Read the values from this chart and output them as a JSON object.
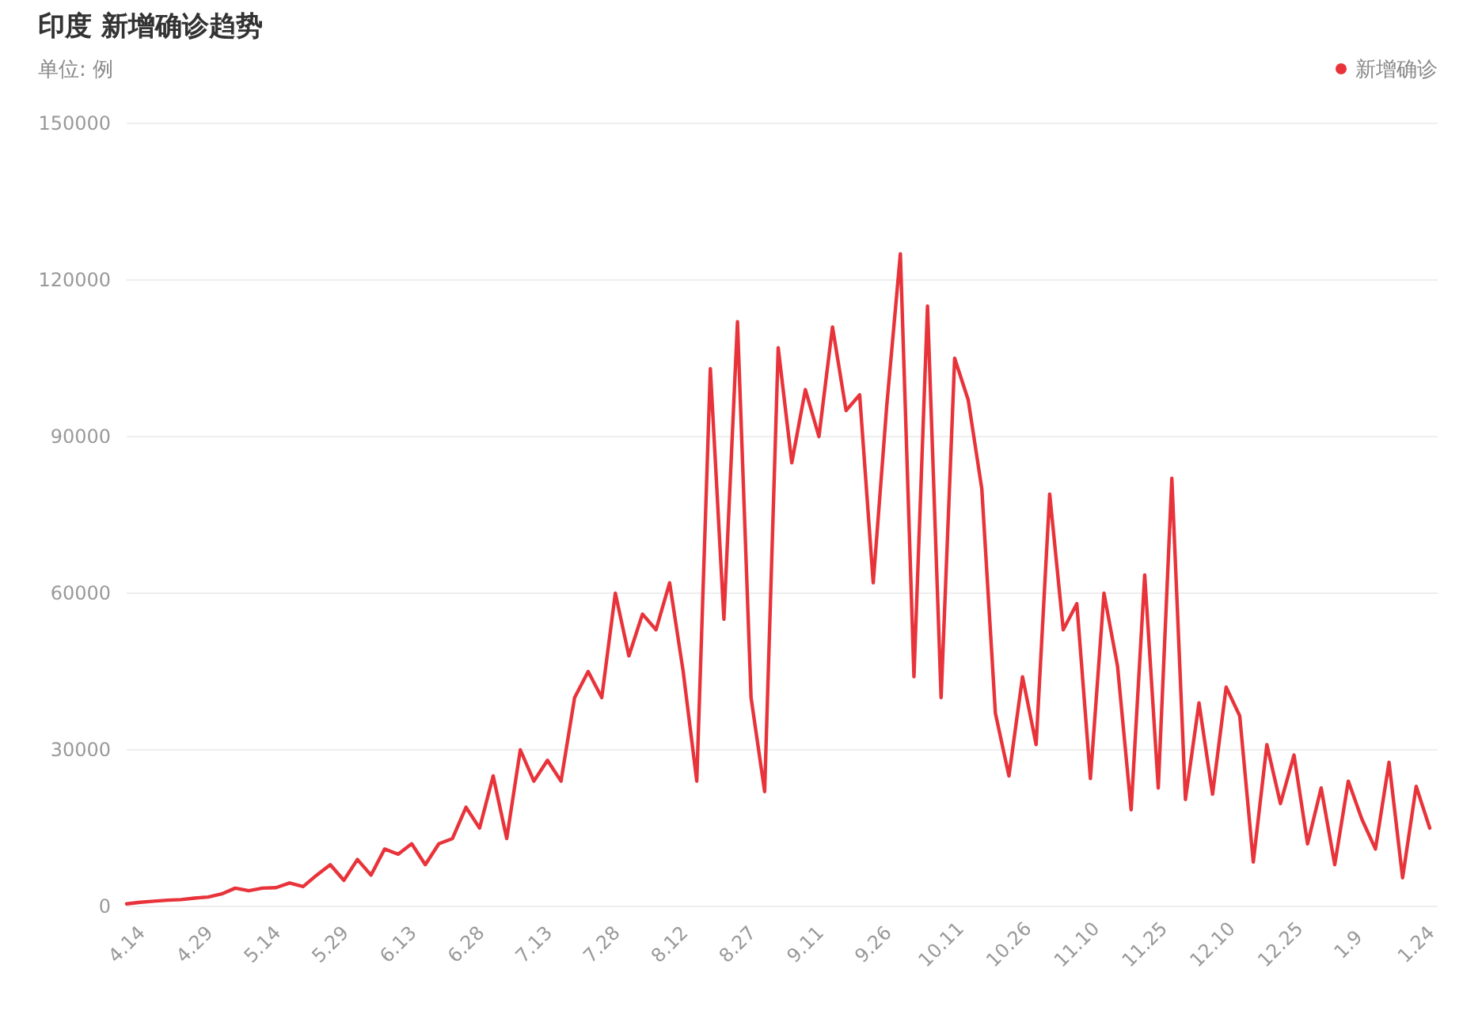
{
  "chart_data": {
    "type": "line",
    "title": "印度 新增确诊趋势",
    "subtitle": "单位: 例",
    "categories": [
      "4.14",
      null,
      null,
      null,
      null,
      "4.29",
      null,
      null,
      null,
      null,
      "5.14",
      null,
      null,
      null,
      null,
      "5.29",
      null,
      null,
      null,
      null,
      "6.13",
      null,
      null,
      null,
      null,
      "6.28",
      null,
      null,
      null,
      null,
      "7.13",
      null,
      null,
      null,
      null,
      "7.28",
      null,
      null,
      null,
      null,
      "8.12",
      null,
      null,
      null,
      null,
      "8.27",
      null,
      null,
      null,
      null,
      "9.11",
      null,
      null,
      null,
      null,
      "9.26",
      null,
      null,
      null,
      null,
      "10.11",
      null,
      null,
      null,
      null,
      "10.26",
      null,
      null,
      null,
      null,
      "11.10",
      null,
      null,
      null,
      null,
      "11.25",
      null,
      null,
      null,
      null,
      "12.10",
      null,
      null,
      null,
      null,
      "12.25",
      null,
      null,
      null,
      null,
      "1.9",
      null,
      null,
      null,
      null,
      "1.24",
      null
    ],
    "series": [
      {
        "name": "新增确诊",
        "color": "#e8333a",
        "values": [
          500,
          800,
          1000,
          1200,
          1300,
          1600,
          1800,
          2400,
          3500,
          3000,
          3500,
          3600,
          4500,
          3800,
          6000,
          8000,
          5000,
          9000,
          6000,
          11000,
          10000,
          12000,
          8000,
          12000,
          13000,
          19000,
          15000,
          25000,
          13000,
          30000,
          24000,
          28000,
          24000,
          40000,
          45000,
          40000,
          60000,
          48000,
          56000,
          53000,
          62000,
          45000,
          24000,
          103000,
          55000,
          112000,
          40000,
          22000,
          107000,
          85000,
          99000,
          90000,
          111000,
          95000,
          98000,
          62000,
          96000,
          125000,
          44000,
          115000,
          40000,
          105000,
          97000,
          80000,
          37000,
          25000,
          44000,
          31000,
          79000,
          53000,
          58000,
          24500,
          60000,
          46000,
          18500,
          63500,
          22700,
          82000,
          20500,
          39000,
          21500,
          42000,
          36500,
          8500,
          31000,
          19700,
          29000,
          12000,
          22700,
          8000,
          24000,
          16700,
          11000,
          27600,
          5500,
          23000,
          15000
        ]
      }
    ],
    "ylim": [
      0,
      150000
    ],
    "yticks": [
      0,
      30000,
      60000,
      90000,
      120000,
      150000
    ],
    "grid": "y",
    "legend": "top right"
  }
}
